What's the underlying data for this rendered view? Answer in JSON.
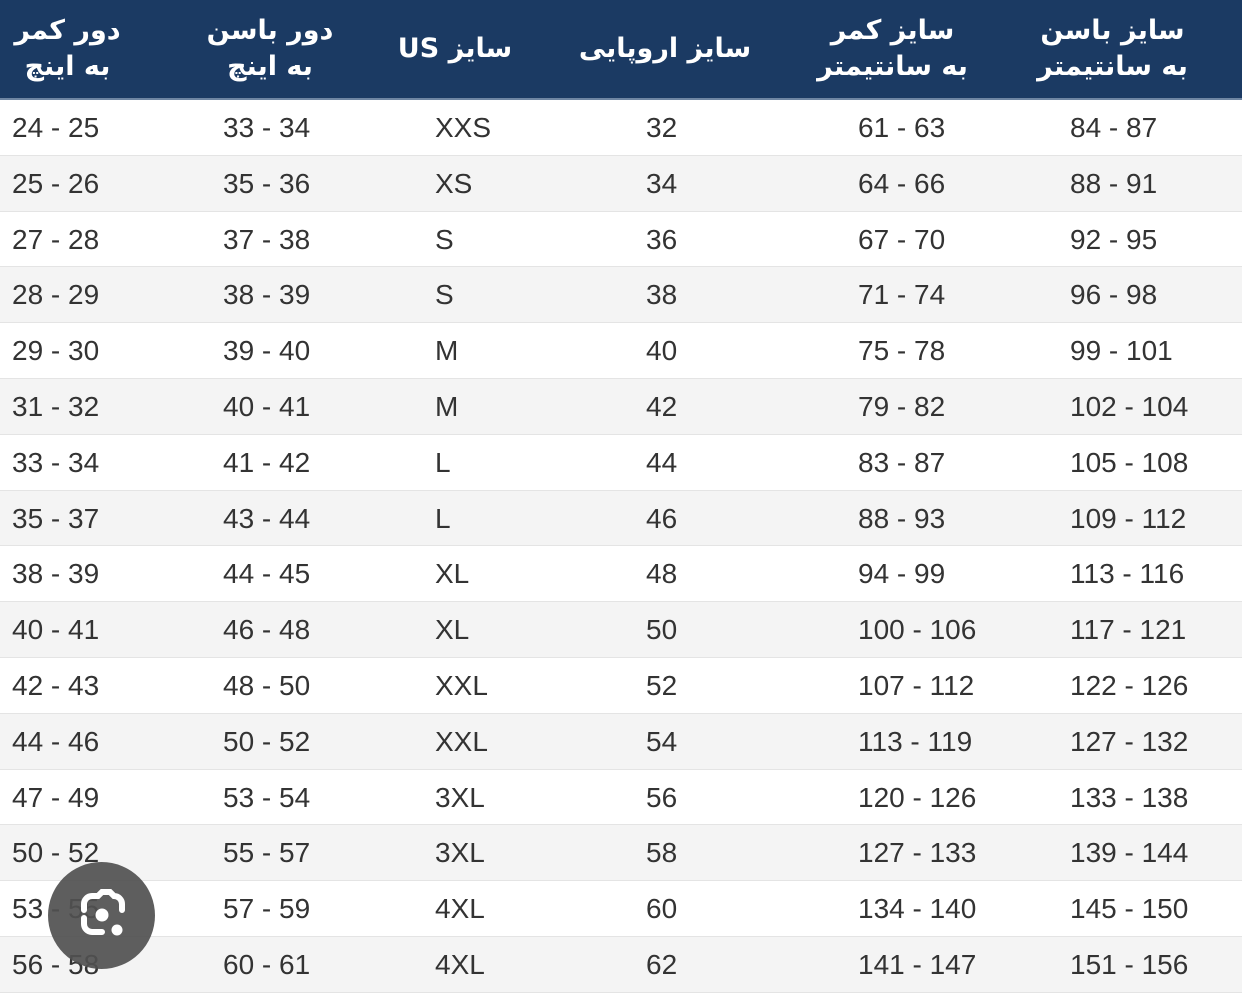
{
  "header": [
    "دور کمر\nبه اینچ",
    "دور باسن\nبه اینچ",
    "سایز US",
    "سایز اروپایی",
    "سایز کمر\nبه سانتیمتر",
    "سایز باسن\nبه سانتیمتر"
  ],
  "rows": [
    [
      "24 - 25",
      "33 - 34",
      "XXS",
      "32",
      "61 - 63",
      "84 - 87"
    ],
    [
      "25 - 26",
      "35 - 36",
      "XS",
      "34",
      "64 - 66",
      "88 - 91"
    ],
    [
      "27 - 28",
      "37 - 38",
      "S",
      "36",
      "67 - 70",
      "92 - 95"
    ],
    [
      "28 - 29",
      "38 - 39",
      "S",
      "38",
      "71 - 74",
      "96 - 98"
    ],
    [
      "29 - 30",
      "39 - 40",
      "M",
      "40",
      "75 - 78",
      "99 - 101"
    ],
    [
      "31 - 32",
      "40 - 41",
      "M",
      "42",
      "79 - 82",
      "102 - 104"
    ],
    [
      "33 - 34",
      "41 - 42",
      "L",
      "44",
      "83 - 87",
      "105 - 108"
    ],
    [
      "35 - 37",
      "43 - 44",
      "L",
      "46",
      "88 - 93",
      "109 - 112"
    ],
    [
      "38 - 39",
      "44 - 45",
      "XL",
      "48",
      "94 - 99",
      "113 - 116"
    ],
    [
      "40 - 41",
      "46 - 48",
      "XL",
      "50",
      "100 - 106",
      "117 - 121"
    ],
    [
      "42 - 43",
      "48 - 50",
      "XXL",
      "52",
      "107 - 112",
      "122 - 126"
    ],
    [
      "44 - 46",
      "50 - 52",
      "XXL",
      "54",
      "113 - 119",
      "127 - 132"
    ],
    [
      "47 - 49",
      "53 - 54",
      "3XL",
      "56",
      "120 - 126",
      "133 - 138"
    ],
    [
      "50 - 52",
      "55 - 57",
      "3XL",
      "58",
      "127 - 133",
      "139 - 144"
    ],
    [
      "53 - 55",
      "57 - 59",
      "4XL",
      "60",
      "134 - 140",
      "145 - 150"
    ],
    [
      "56 - 58",
      "60 - 61",
      "4XL",
      "62",
      "141 - 147",
      "151 - 156"
    ]
  ],
  "colors": {
    "header_bg": "#1b3a63",
    "header_text": "#ffffff",
    "row_alt": "#f4f4f4"
  },
  "overlay": {
    "icon": "google-lens-icon"
  }
}
